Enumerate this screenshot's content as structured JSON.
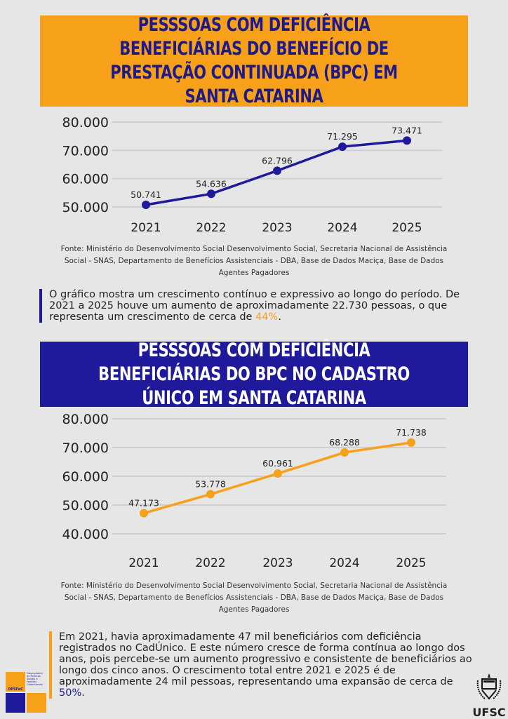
{
  "chart_data": [
    {
      "type": "line",
      "title": "Pesssoas com deficiência beneficiárias do Benefício de Prestação Continuada (BPC) em Santa Catarina",
      "categories": [
        "2021",
        "2022",
        "2023",
        "2024",
        "2025"
      ],
      "values": [
        50741,
        54636,
        62796,
        71295,
        73471
      ],
      "value_labels": [
        "50.741",
        "54.636",
        "62.796",
        "71.295",
        "73.471"
      ],
      "yticks": [
        "50.000",
        "60.000",
        "70.000",
        "80.000"
      ],
      "ylim": [
        50000,
        80000
      ],
      "grid": true,
      "color": "#1f1a9c",
      "source": "Fonte: Ministério do Desenvolvimento Social Desenvolvimento Social, Secretaria Nacional de Assistência Social - SNAS, Departamento de Benefícios Assistenciais - DBA, Base de Dados Maciça, Base de Dados Agentes Pagadores"
    },
    {
      "type": "line",
      "title": "Pesssoas com deficiência beneficiárias do BPC no Cadastro Único em Santa Catarina",
      "categories": [
        "2021",
        "2022",
        "2023",
        "2024",
        "2025"
      ],
      "values": [
        47173,
        53778,
        60961,
        68288,
        71738
      ],
      "value_labels": [
        "47.173",
        "53.778",
        "60.961",
        "68.288",
        "71.738"
      ],
      "yticks": [
        "40.000",
        "50.000",
        "60.000",
        "70.000",
        "80.000"
      ],
      "ylim": [
        40000,
        80000
      ],
      "grid": true,
      "color": "#f7a01a",
      "source": "Fonte: Ministério do Desenvolvimento Social Desenvolvimento Social, Secretaria Nacional de Assistência Social - SNAS, Departamento de Benefícios Assistenciais - DBA, Base de Dados Maciça, Base de Dados Agentes Pagadores"
    }
  ],
  "text1": {
    "before": "O gráfico mostra um crescimento contínuo e expressivo ao longo do período. De 2021 a 2025 houve um aumento de aproximadamente 22.730 pessoas, o que representa um crescimento de cerca de ",
    "highlight": "44%",
    "after": "."
  },
  "text2": {
    "before": "Em 2021, havia aproximadamente 47 mil beneficiários com deficiência registrados no CadÚnico. E este número cresce de forma contínua ao longo dos anos, pois percebe-se um aumento progressivo e consistente de beneficiários ao longo dos cinco anos. O crescimento total entre 2021 e 2025 é de aproximadamente 24 mil pessoas, representando uma expansão de cerca de ",
    "highlight": "50%",
    "after": "."
  },
  "logos": {
    "opsfac": "OPSFaC",
    "opsfac_full": "Observatório de Políticas Sociais e Famílias Catarinenses",
    "ufsc": "UFSC"
  },
  "colors": {
    "orange": "#f7a01a",
    "blue": "#1f1a9c",
    "background": "#e6e6e6"
  }
}
